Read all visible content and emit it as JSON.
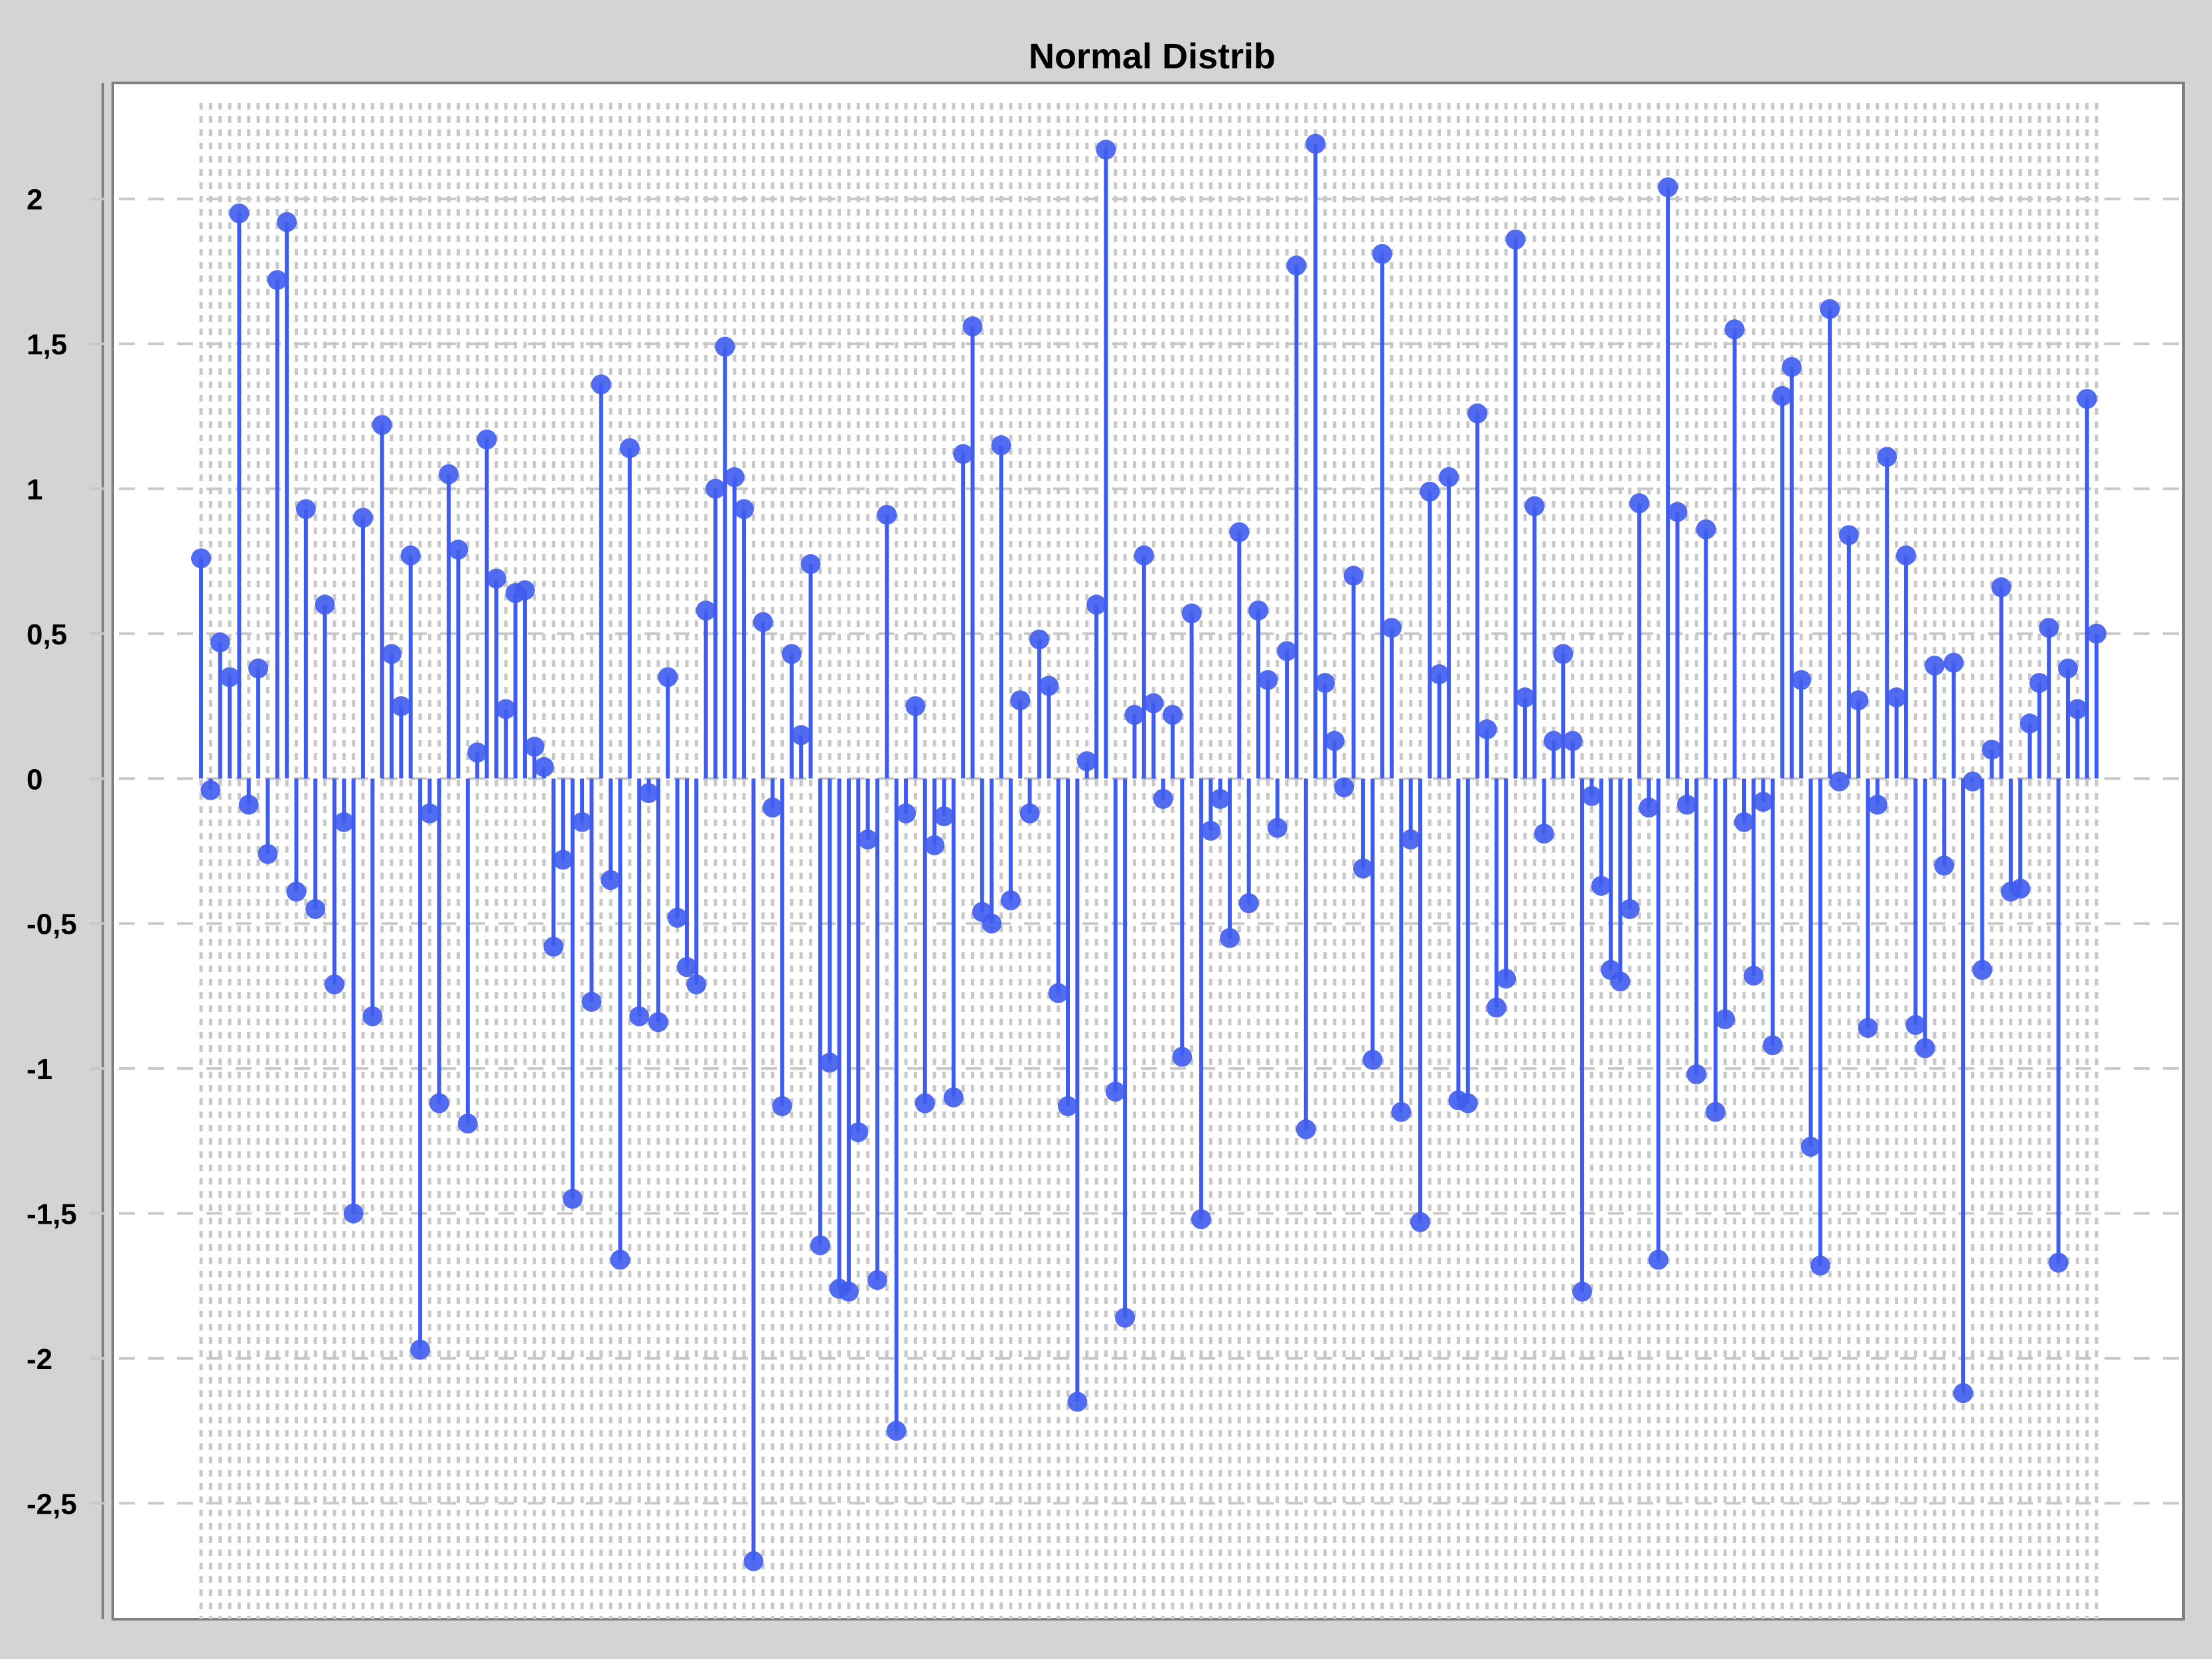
{
  "chart_data": {
    "type": "stem",
    "title": "Normal Distrib",
    "xlabel": "",
    "ylabel": "",
    "ylim": [
      -2.9,
      2.4
    ],
    "yticks": [
      2,
      1.5,
      1,
      0.5,
      0,
      -0.5,
      -1,
      -1.5,
      -2,
      -2.5
    ],
    "ytick_labels": [
      "2",
      "1,5",
      "1",
      "0,5",
      "0",
      "-0,5",
      "-1",
      "-1,5",
      "-2",
      "-2,5"
    ],
    "x_start": 1,
    "grid": "dashed",
    "legend": "none",
    "colors": {
      "stem": "#3f5cf0",
      "grid": "#c8c8c8",
      "plot_bg": "#ffffff",
      "frame_bg": "#d4d4d4"
    },
    "values": [
      0.76,
      -0.04,
      0.47,
      0.35,
      1.95,
      -0.09,
      0.38,
      -0.26,
      1.72,
      1.92,
      -0.39,
      0.93,
      -0.45,
      0.6,
      -0.71,
      -0.15,
      -1.5,
      0.9,
      -0.82,
      1.22,
      0.43,
      0.25,
      0.77,
      -1.97,
      -0.12,
      -1.12,
      1.05,
      0.79,
      -1.19,
      0.09,
      1.17,
      0.69,
      0.24,
      0.64,
      0.65,
      0.11,
      0.04,
      -0.58,
      -0.28,
      -1.45,
      -0.15,
      -0.77,
      1.36,
      -0.35,
      -1.66,
      1.14,
      -0.82,
      -0.05,
      -0.84,
      0.35,
      -0.48,
      -0.65,
      -0.71,
      0.58,
      1.0,
      1.49,
      1.04,
      0.93,
      -2.7,
      0.54,
      -0.1,
      -1.13,
      0.43,
      0.15,
      0.74,
      -1.61,
      -0.98,
      -1.76,
      -1.77,
      -1.22,
      -0.21,
      -1.73,
      0.91,
      -2.25,
      -0.12,
      0.25,
      -1.12,
      -0.23,
      -0.13,
      -1.1,
      1.12,
      1.56,
      -0.46,
      -0.5,
      1.15,
      -0.42,
      0.27,
      -0.12,
      0.48,
      0.32,
      -0.74,
      -1.13,
      -2.15,
      0.06,
      0.6,
      2.17,
      -1.08,
      -1.86,
      0.22,
      0.77,
      0.26,
      -0.07,
      0.22,
      -0.96,
      0.57,
      -1.52,
      -0.18,
      -0.07,
      -0.55,
      0.85,
      -0.43,
      0.58,
      0.34,
      -0.17,
      0.44,
      1.77,
      -1.21,
      2.19,
      0.33,
      0.13,
      -0.03,
      0.7,
      -0.31,
      -0.97,
      1.81,
      0.52,
      -1.15,
      -0.21,
      -1.53,
      0.99,
      0.36,
      1.04,
      -1.11,
      -1.12,
      1.26,
      0.17,
      -0.79,
      -0.69,
      1.86,
      0.28,
      0.94,
      -0.19,
      0.13,
      0.43,
      0.13,
      -1.77,
      -0.06,
      -0.37,
      -0.66,
      -0.7,
      -0.45,
      0.95,
      -0.1,
      -1.66,
      2.04,
      0.92,
      -0.09,
      -1.02,
      0.86,
      -1.15,
      -0.83,
      1.55,
      -0.15,
      -0.68,
      -0.08,
      -0.92,
      1.32,
      1.42,
      0.34,
      -1.27,
      -1.68,
      1.62,
      -0.01,
      0.84,
      0.27,
      -0.86,
      -0.09,
      1.11,
      0.28,
      0.77,
      -0.85,
      -0.93,
      0.39,
      -0.3,
      0.4,
      -2.12,
      -0.01,
      -0.66,
      0.1,
      0.66,
      -0.39,
      -0.38,
      0.19,
      0.33,
      0.52,
      -1.67,
      0.38,
      0.24,
      1.31,
      0.5
    ]
  }
}
